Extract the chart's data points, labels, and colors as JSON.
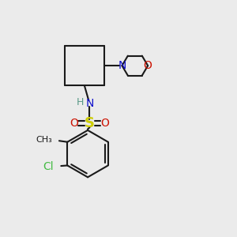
{
  "background_color": "#ebebeb",
  "bond_color": "#1a1a1a",
  "bond_width": 1.5,
  "figsize": [
    3.0,
    3.0
  ],
  "dpi": 100,
  "colors": {
    "N": "#1111cc",
    "O": "#cc1100",
    "S": "#cccc00",
    "Cl": "#44bb44",
    "H": "#5a9988",
    "C": "#1a1a1a"
  }
}
